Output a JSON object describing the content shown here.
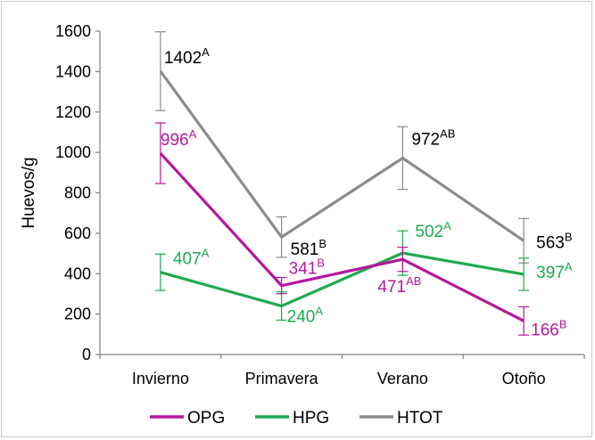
{
  "chart_data": {
    "type": "line",
    "categories": [
      "Invierno",
      "Primavera",
      "Verano",
      "Otoño"
    ],
    "ylabel": "Huevos/g",
    "ylim": [
      0,
      1600
    ],
    "yticks": [
      0,
      200,
      400,
      600,
      800,
      1000,
      1200,
      1400,
      1600
    ],
    "legend_position": "bottom",
    "series": [
      {
        "name": "OPG",
        "color": "#b5179e",
        "values": [
          996,
          341,
          471,
          166
        ],
        "errors": [
          150,
          40,
          60,
          70
        ],
        "labels": [
          {
            "value": "996",
            "letter": "A"
          },
          {
            "value": "341",
            "letter": "B"
          },
          {
            "value": "471",
            "letter": "AB"
          },
          {
            "value": "166",
            "letter": "B"
          }
        ]
      },
      {
        "name": "HPG",
        "color": "#1faa4e",
        "values": [
          407,
          240,
          502,
          397
        ],
        "errors": [
          90,
          70,
          110,
          80
        ],
        "labels": [
          {
            "value": "407",
            "letter": "A"
          },
          {
            "value": "240",
            "letter": "A"
          },
          {
            "value": "502",
            "letter": "A"
          },
          {
            "value": "397",
            "letter": "A"
          }
        ]
      },
      {
        "name": "HTOT",
        "color": "#8c8c8c",
        "values": [
          1402,
          581,
          972,
          563
        ],
        "errors": [
          195,
          100,
          155,
          110
        ],
        "labels": [
          {
            "value": "1402",
            "letter": "A"
          },
          {
            "value": "581",
            "letter": "B"
          },
          {
            "value": "972",
            "letter": "AB"
          },
          {
            "value": "563",
            "letter": "B"
          }
        ]
      }
    ]
  }
}
